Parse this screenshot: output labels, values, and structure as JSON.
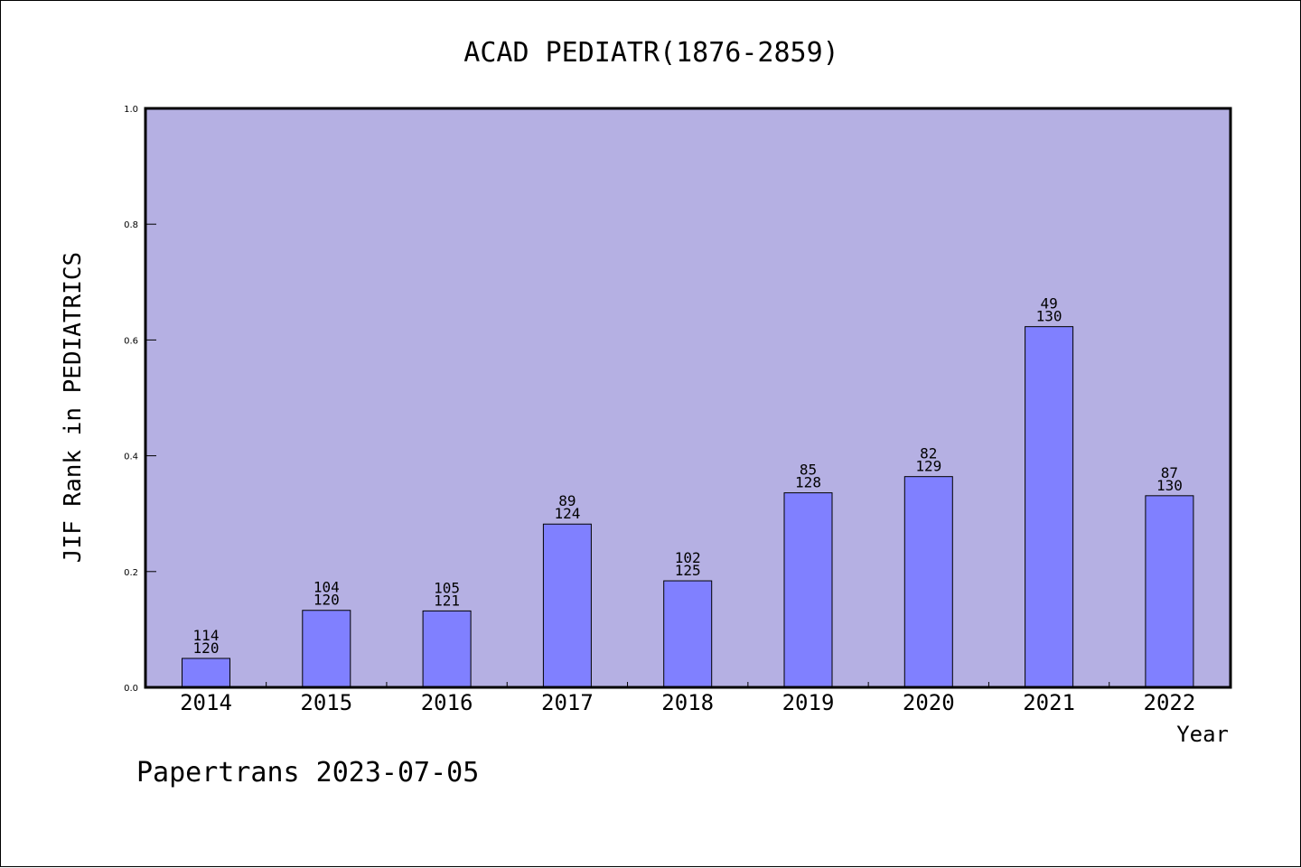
{
  "chart_data": {
    "type": "bar",
    "title": "ACAD PEDIATR(1876-2859)",
    "ylabel": "JIF Rank in PEDIATRICS",
    "xlabel": "Year",
    "ylim": [
      0,
      1.0
    ],
    "yticks": [
      "0.0",
      "0.2",
      "0.4",
      "0.6",
      "0.8",
      "1.0"
    ],
    "grid": false,
    "colors": {
      "plot_background": "#b5b0e3",
      "bar": "#8080ff",
      "bar_edge": "#000000"
    },
    "categories": [
      "2014",
      "2015",
      "2016",
      "2017",
      "2018",
      "2019",
      "2020",
      "2021",
      "2022"
    ],
    "values": [
      0.05,
      0.133,
      0.132,
      0.282,
      0.184,
      0.336,
      0.364,
      0.623,
      0.331
    ],
    "rank_labels": [
      {
        "rank": "114",
        "total": "120"
      },
      {
        "rank": "104",
        "total": "120"
      },
      {
        "rank": "105",
        "total": "121"
      },
      {
        "rank": "89",
        "total": "124"
      },
      {
        "rank": "102",
        "total": "125"
      },
      {
        "rank": "85",
        "total": "128"
      },
      {
        "rank": "82",
        "total": "129"
      },
      {
        "rank": "49",
        "total": "130"
      },
      {
        "rank": "87",
        "total": "130"
      }
    ]
  },
  "footer": {
    "text": "Papertrans 2023-07-05"
  }
}
